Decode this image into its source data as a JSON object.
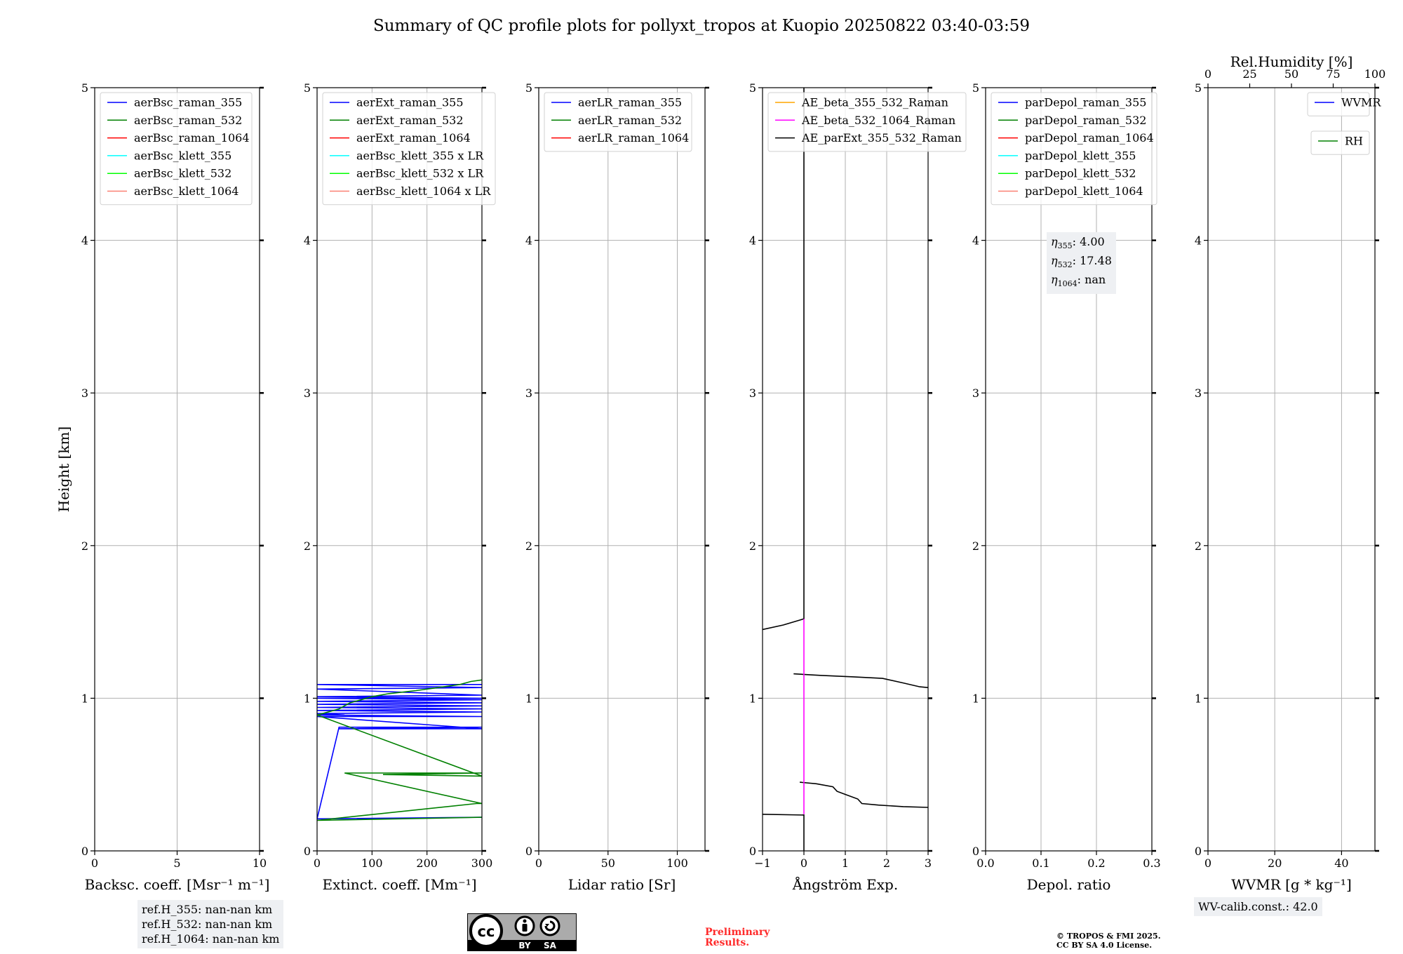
{
  "title": "Summary of QC profile plots for pollyxt_tropos at Kuopio 20250822 03:40-03:59",
  "colors": {
    "blue": "#0000ff",
    "green": "#008000",
    "red": "#ff0000",
    "cyan": "#00ffff",
    "lime": "#00ff00",
    "salmon": "#fa8072",
    "orange": "#ffa500",
    "magenta": "#ff00ff",
    "black": "#000000",
    "grid": "#b0b0b0"
  },
  "chart_data": [
    {
      "id": "backscatter",
      "type": "line",
      "xlabel": "Backsc. coeff. [Msr⁻¹ m⁻¹]",
      "ylabel": "Height [km]",
      "xlim": [
        0,
        10
      ],
      "ylim": [
        0,
        5
      ],
      "xticks": [
        0,
        5,
        10
      ],
      "xtick_labels": [
        "0",
        "5",
        "10"
      ],
      "yticks": [
        0,
        1,
        2,
        3,
        4,
        5
      ],
      "grid": true,
      "legend_loc": "top-left",
      "legend": [
        {
          "label": "aerBsc_raman_355",
          "color": "blue"
        },
        {
          "label": "aerBsc_raman_532",
          "color": "green"
        },
        {
          "label": "aerBsc_raman_1064",
          "color": "red"
        },
        {
          "label": "aerBsc_klett_355",
          "color": "cyan"
        },
        {
          "label": "aerBsc_klett_532",
          "color": "lime"
        },
        {
          "label": "aerBsc_klett_1064",
          "color": "salmon"
        }
      ],
      "series": []
    },
    {
      "id": "extinction",
      "type": "line",
      "xlabel": "Extinct. coeff. [Mm⁻¹]",
      "xlim": [
        0,
        300
      ],
      "ylim": [
        0,
        5
      ],
      "xticks": [
        0,
        100,
        200,
        300
      ],
      "xtick_labels": [
        "0",
        "100",
        "200",
        "300"
      ],
      "yticks": [
        0,
        1,
        2,
        3,
        4,
        5
      ],
      "grid": true,
      "legend_loc": "top-left",
      "legend": [
        {
          "label": "aerExt_raman_355",
          "color": "blue"
        },
        {
          "label": "aerExt_raman_532",
          "color": "green"
        },
        {
          "label": "aerExt_raman_1064",
          "color": "red"
        },
        {
          "label": "aerBsc_klett_355 x LR",
          "color": "cyan"
        },
        {
          "label": "aerBsc_klett_532 x LR",
          "color": "lime"
        },
        {
          "label": "aerBsc_klett_1064 x LR",
          "color": "salmon"
        }
      ],
      "series": [
        {
          "name": "aerExt_raman_355",
          "color": "blue",
          "points": [
            [
              0,
              0.21
            ],
            [
              300,
              0.22
            ],
            [
              0,
              0.21
            ],
            [
              40,
              0.81
            ],
            [
              80,
              0.81
            ],
            [
              300,
              0.81
            ],
            [
              40,
              0.8
            ],
            [
              300,
              0.8
            ],
            [
              0,
              0.88
            ],
            [
              300,
              0.88
            ],
            [
              0,
              0.89
            ],
            [
              50,
              0.89
            ],
            [
              0,
              0.9
            ],
            [
              300,
              0.91
            ],
            [
              0,
              0.92
            ],
            [
              300,
              0.93
            ],
            [
              0,
              0.94
            ],
            [
              300,
              0.95
            ],
            [
              0,
              0.96
            ],
            [
              300,
              0.97
            ],
            [
              0,
              0.98
            ],
            [
              300,
              0.99
            ],
            [
              0,
              1.0
            ],
            [
              300,
              1.0
            ],
            [
              0,
              1.01
            ],
            [
              300,
              1.02
            ],
            [
              0,
              1.06
            ],
            [
              300,
              1.07
            ],
            [
              0,
              1.09
            ],
            [
              300,
              1.09
            ]
          ]
        },
        {
          "name": "aerExt_raman_532",
          "color": "green",
          "points": [
            [
              0,
              0.2
            ],
            [
              300,
              0.22
            ],
            [
              0,
              0.2
            ],
            [
              290,
              0.31
            ],
            [
              300,
              0.31
            ],
            [
              50,
              0.51
            ],
            [
              120,
              0.51
            ],
            [
              300,
              0.51
            ],
            [
              120,
              0.5
            ],
            [
              300,
              0.49
            ],
            [
              0,
              0.89
            ],
            [
              20,
              0.91
            ],
            [
              40,
              0.93
            ],
            [
              60,
              0.97
            ],
            [
              80,
              0.99
            ],
            [
              100,
              1.01
            ],
            [
              130,
              1.03
            ],
            [
              180,
              1.05
            ],
            [
              220,
              1.07
            ],
            [
              260,
              1.09
            ],
            [
              280,
              1.11
            ],
            [
              300,
              1.12
            ]
          ]
        }
      ]
    },
    {
      "id": "lidar_ratio",
      "type": "line",
      "xlabel": "Lidar ratio [Sr]",
      "xlim": [
        0,
        120
      ],
      "ylim": [
        0,
        5
      ],
      "xticks": [
        0,
        50,
        100
      ],
      "xtick_labels": [
        "0",
        "50",
        "100"
      ],
      "yticks": [
        0,
        1,
        2,
        3,
        4,
        5
      ],
      "grid": true,
      "legend_loc": "top-left",
      "legend": [
        {
          "label": "aerLR_raman_355",
          "color": "blue"
        },
        {
          "label": "aerLR_raman_532",
          "color": "green"
        },
        {
          "label": "aerLR_raman_1064",
          "color": "red"
        }
      ],
      "series": []
    },
    {
      "id": "angstrom",
      "type": "line",
      "xlabel": "Ångström Exp.",
      "xlim": [
        -1,
        3
      ],
      "ylim": [
        0,
        5
      ],
      "xticks": [
        -1,
        0,
        1,
        2,
        3
      ],
      "xtick_labels": [
        "−1",
        "0",
        "1",
        "2",
        "3"
      ],
      "yticks": [
        0,
        1,
        2,
        3,
        4,
        5
      ],
      "grid": true,
      "legend_loc": "top-left",
      "legend": [
        {
          "label": "AE_beta_355_532_Raman",
          "color": "orange"
        },
        {
          "label": "AE_beta_532_1064_Raman",
          "color": "magenta"
        },
        {
          "label": "AE_parExt_355_532_Raman",
          "color": "black"
        }
      ],
      "series": [
        {
          "name": "AE_parExt_355_532_Raman (low)",
          "color": "black",
          "points": [
            [
              -1,
              0.24
            ],
            [
              0,
              0.235
            ],
            [
              0,
              0.0
            ],
            [
              0,
              0.235
            ]
          ]
        },
        {
          "name": "AE_parExt_355_532_Raman (0.3-0.45 km)",
          "color": "black",
          "points": [
            [
              -0.1,
              0.45
            ],
            [
              0.3,
              0.44
            ],
            [
              0.7,
              0.42
            ],
            [
              0.8,
              0.39
            ],
            [
              1.0,
              0.37
            ],
            [
              1.3,
              0.34
            ],
            [
              1.4,
              0.31
            ],
            [
              1.8,
              0.3
            ],
            [
              2.4,
              0.29
            ],
            [
              3.0,
              0.285
            ]
          ]
        },
        {
          "name": "AE_parExt_355_532_Raman (1.1 km)",
          "color": "black",
          "points": [
            [
              -0.25,
              1.16
            ],
            [
              0.4,
              1.15
            ],
            [
              1.2,
              1.14
            ],
            [
              1.9,
              1.13
            ],
            [
              2.4,
              1.1
            ],
            [
              2.8,
              1.075
            ],
            [
              3.0,
              1.07
            ]
          ]
        },
        {
          "name": "AE_parExt_355_532_Raman (1.5 km)",
          "color": "black",
          "points": [
            [
              -1,
              1.45
            ],
            [
              -0.5,
              1.48
            ],
            [
              0,
              1.52
            ],
            [
              0,
              5.0
            ]
          ]
        },
        {
          "name": "AE_beta_532_1064_Raman",
          "color": "magenta",
          "points": [
            [
              0,
              0.24
            ],
            [
              0,
              1.52
            ]
          ]
        }
      ]
    },
    {
      "id": "depol",
      "type": "line",
      "xlabel": "Depol. ratio",
      "xlim": [
        0,
        0.3
      ],
      "ylim": [
        0,
        5
      ],
      "xticks": [
        0,
        0.1,
        0.2,
        0.3
      ],
      "xtick_labels": [
        "0.0",
        "0.1",
        "0.2",
        "0.3"
      ],
      "yticks": [
        0,
        1,
        2,
        3,
        4,
        5
      ],
      "grid": true,
      "legend_loc": "top-left",
      "legend": [
        {
          "label": "parDepol_raman_355",
          "color": "blue"
        },
        {
          "label": "parDepol_raman_532",
          "color": "green"
        },
        {
          "label": "parDepol_raman_1064",
          "color": "red"
        },
        {
          "label": "parDepol_klett_355",
          "color": "cyan"
        },
        {
          "label": "parDepol_klett_532",
          "color": "lime"
        },
        {
          "label": "parDepol_klett_1064",
          "color": "salmon"
        }
      ],
      "series": []
    },
    {
      "id": "wvmr",
      "type": "line",
      "xlabel": "WVMR [g * kg⁻¹]",
      "xlim": [
        0,
        50
      ],
      "ylim": [
        0,
        5
      ],
      "xticks": [
        0,
        20,
        40
      ],
      "xtick_labels": [
        "0",
        "20",
        "40"
      ],
      "yticks": [
        0,
        1,
        2,
        3,
        4,
        5
      ],
      "top_axis": {
        "label": "Rel.Humidity [%]",
        "lim": [
          0,
          100
        ],
        "ticks": [
          0,
          25,
          50,
          75,
          100
        ],
        "tick_labels": [
          "0",
          "25",
          "50",
          "75",
          "100"
        ]
      },
      "grid": true,
      "legend_loc": "top-right",
      "legend": [
        {
          "label": "WVMR",
          "color": "blue"
        }
      ],
      "legend2": [
        {
          "label": "RH",
          "color": "green"
        }
      ],
      "series": []
    }
  ],
  "annotations": {
    "ref_h": [
      "ref.H_355: nan-nan km",
      "ref.H_532: nan-nan km",
      "ref.H_1064: nan-nan km"
    ],
    "eta": [
      {
        "sub": "355",
        "value": ": 4.00"
      },
      {
        "sub": "532",
        "value": ": 17.48"
      },
      {
        "sub": "1064",
        "value": ": nan"
      }
    ],
    "wv_calib": "WV-calib.const.: 42.0",
    "preliminary": [
      "Preliminary",
      "Results."
    ],
    "copyright": [
      "© TROPOS & FMI 2025.",
      "CC BY SA 4.0 License."
    ],
    "cc_by": "BY",
    "cc_sa": "SA"
  }
}
